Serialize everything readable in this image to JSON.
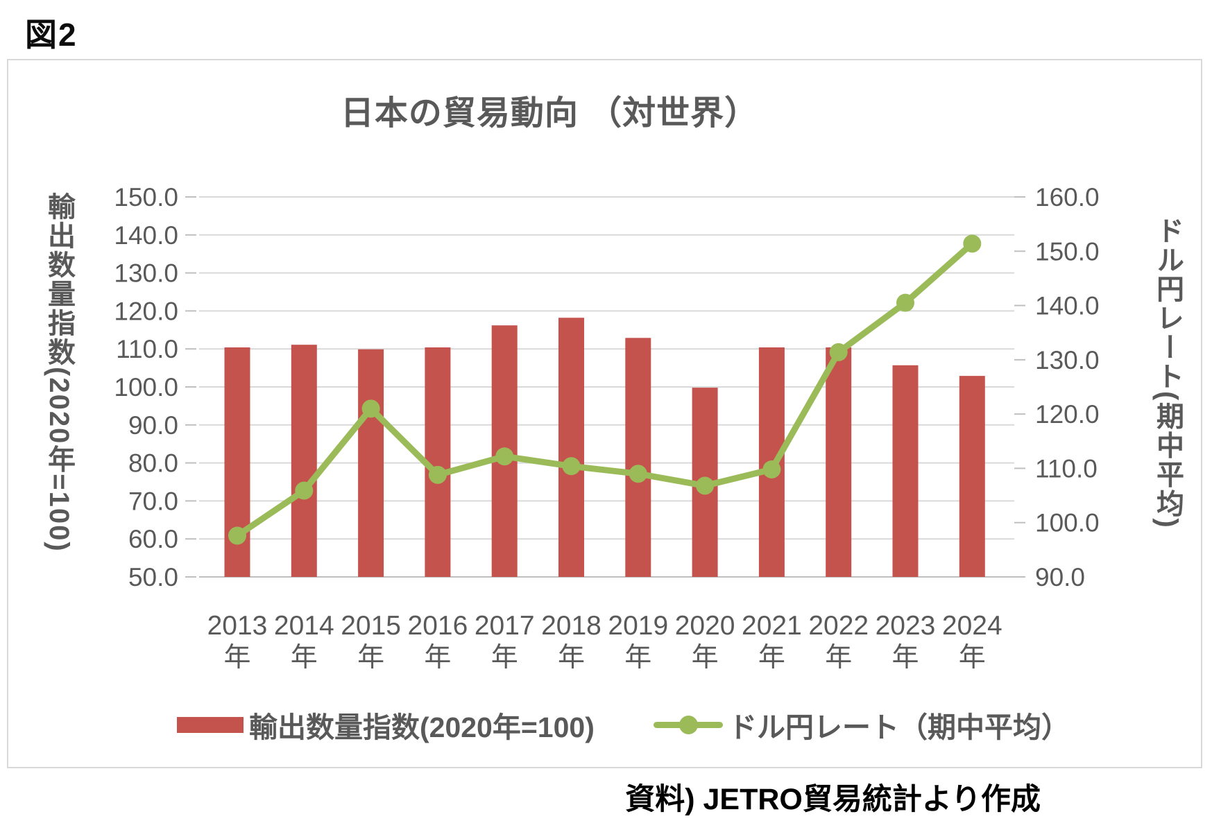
{
  "figure_label": "図2",
  "source_note": "資料) JETRO貿易統計より作成",
  "chart_data": {
    "type": "bar+line combo",
    "title": "日本の貿易動向 （対世界）",
    "years": [
      "2013",
      "2014",
      "2015",
      "2016",
      "2017",
      "2018",
      "2019",
      "2020",
      "2021",
      "2022",
      "2023",
      "2024"
    ],
    "year_suffix": "年",
    "series": [
      {
        "name": "輸出数量指数(2020年=100)",
        "type": "bar",
        "axis": "left",
        "color": "#C4534E",
        "values": [
          110.4,
          111.1,
          109.9,
          110.4,
          116.2,
          118.2,
          112.9,
          99.8,
          110.4,
          110.4,
          105.7,
          102.9
        ]
      },
      {
        "name": "ドル円レート（期中平均）",
        "type": "line",
        "axis": "right",
        "color": "#9BBB59",
        "values": [
          97.6,
          105.9,
          121.0,
          108.8,
          112.2,
          110.4,
          109.0,
          106.8,
          109.8,
          131.4,
          140.5,
          151.4
        ]
      }
    ],
    "left_axis": {
      "title": "輸出数量指数(2020年=100)",
      "min": 50,
      "max": 150,
      "step": 10,
      "tick_labels": [
        "150.0",
        "140.0",
        "130.0",
        "120.0",
        "110.0",
        "100.0",
        "90.0",
        "80.0",
        "70.0",
        "60.0",
        "50.0"
      ]
    },
    "right_axis": {
      "title": "ドル円レート(期中平均)",
      "min": 90,
      "max": 160,
      "step": 10,
      "tick_labels": [
        "160.0",
        "150.0",
        "140.0",
        "130.0",
        "120.0",
        "110.0",
        "100.0",
        "90.0"
      ]
    },
    "grid": true,
    "legend_position": "bottom",
    "colors": {
      "text": "#595959",
      "gridline": "#d9d9d9",
      "axis_line": "#bfbfbf"
    }
  }
}
